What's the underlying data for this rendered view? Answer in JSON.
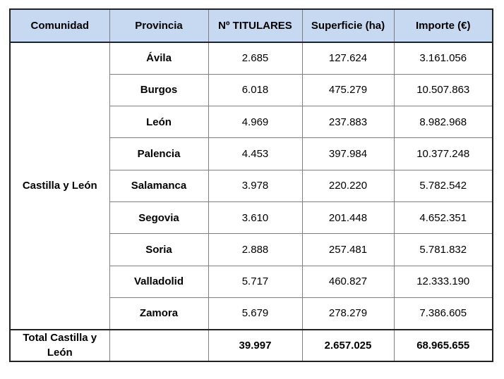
{
  "table": {
    "headers": [
      "Comunidad",
      "Provincia",
      "Nº TITULARES",
      "Superficie (ha)",
      "Importe (€)"
    ],
    "comunidad": "Castilla y León",
    "rows": [
      {
        "provincia": "Ávila",
        "titulares": "2.685",
        "superficie": "127.624",
        "importe": "3.161.056"
      },
      {
        "provincia": "Burgos",
        "titulares": "6.018",
        "superficie": "475.279",
        "importe": "10.507.863"
      },
      {
        "provincia": "León",
        "titulares": "4.969",
        "superficie": "237.883",
        "importe": "8.982.968"
      },
      {
        "provincia": "Palencia",
        "titulares": "4.453",
        "superficie": "397.984",
        "importe": "10.377.248"
      },
      {
        "provincia": "Salamanca",
        "titulares": "3.978",
        "superficie": "220.220",
        "importe": "5.782.542"
      },
      {
        "provincia": "Segovia",
        "titulares": "3.610",
        "superficie": "201.448",
        "importe": "4.652.351"
      },
      {
        "provincia": "Soria",
        "titulares": "2.888",
        "superficie": "257.481",
        "importe": "5.781.832"
      },
      {
        "provincia": "Valladolid",
        "titulares": "5.717",
        "superficie": "460.827",
        "importe": "12.333.190"
      },
      {
        "provincia": "Zamora",
        "titulares": "5.679",
        "superficie": "278.279",
        "importe": "7.386.605"
      }
    ],
    "total": {
      "label": "Total Castilla y León",
      "provincia": "",
      "titulares": "39.997",
      "superficie": "2.657.025",
      "importe": "68.965.655"
    }
  }
}
